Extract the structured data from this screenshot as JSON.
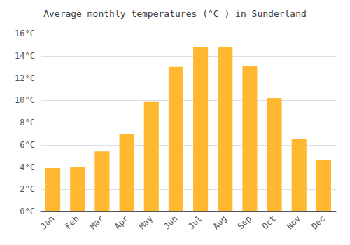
{
  "chart_data": {
    "type": "bar",
    "title": "Average monthly temperatures (°C ) in Sunderland",
    "categories": [
      "Jan",
      "Feb",
      "Mar",
      "Apr",
      "May",
      "Jun",
      "Jul",
      "Aug",
      "Sep",
      "Oct",
      "Nov",
      "Dec"
    ],
    "values": [
      3.9,
      4.0,
      5.4,
      7.0,
      9.9,
      13.0,
      14.8,
      14.8,
      13.1,
      10.2,
      6.5,
      4.6
    ],
    "color": "#FFB830",
    "ylim": [
      0,
      16
    ],
    "yticks": [
      {
        "value": 0,
        "label": "0°C"
      },
      {
        "value": 2,
        "label": "2°C"
      },
      {
        "value": 4,
        "label": "4°C"
      },
      {
        "value": 6,
        "label": "6°C"
      },
      {
        "value": 8,
        "label": "8°C"
      },
      {
        "value": 10,
        "label": "10°C"
      },
      {
        "value": 12,
        "label": "12°C"
      },
      {
        "value": 14,
        "label": "14°C"
      },
      {
        "value": 16,
        "label": "16°C"
      }
    ],
    "grid": true
  }
}
